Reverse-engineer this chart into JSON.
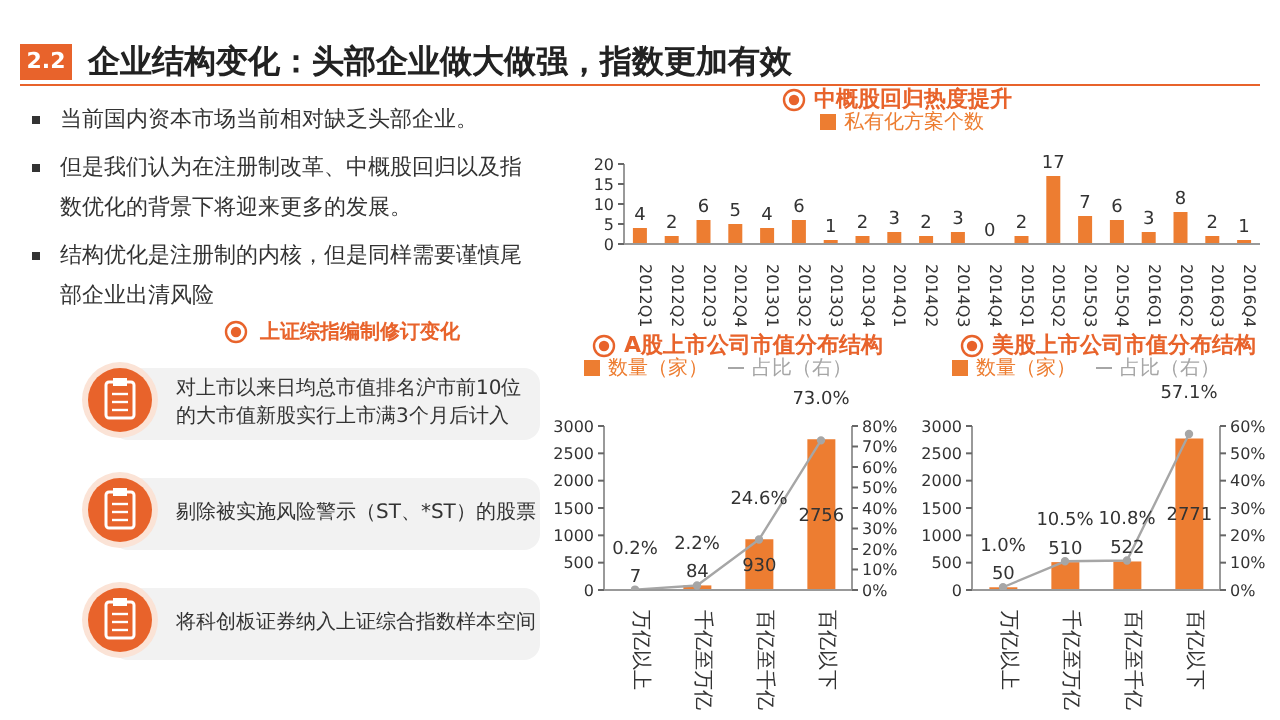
{
  "chart_data": [
    {
      "type": "other",
      "title": "企业结构变化：头部企业做大做强，指数更加有效",
      "annotations": [
        "2.2",
        "当前国内资本市场当前相对缺乏头部企业。",
        "但是我们认为在注册制改革、中概股回归以及指数优化的背景下将迎来更多的发展。",
        "结构优化是注册制的内核，但是同样需要谨慎尾部企业出清风险",
        "上证综指编制修订变化",
        "对上市以来日均总市值排名沪市前10位的大市值新股实行上市满3个月后计入",
        "剔除被实施风险警示（ST、*ST）的股票",
        "将科创板证券纳入上证综合指数样本空间"
      ]
    },
    {
      "type": "bar",
      "title": "中概股回归热度提升",
      "legend": "top",
      "data_labels": true,
      "categories": [
        "2012Q1",
        "2012Q2",
        "2012Q3",
        "2012Q4",
        "2013Q1",
        "2013Q2",
        "2013Q3",
        "2013Q4",
        "2014Q1",
        "2014Q2",
        "2014Q3",
        "2014Q4",
        "2015Q1",
        "2015Q2",
        "2015Q3",
        "2015Q4",
        "2016Q1",
        "2016Q2",
        "2016Q3",
        "2016Q4"
      ],
      "ylim": [
        0,
        20
      ],
      "yticks": [
        0,
        5,
        10,
        15,
        20
      ],
      "series": [
        {
          "name": "私有化方案个数",
          "color": "#ed7d31",
          "values": [
            4,
            2,
            6,
            5,
            4,
            6,
            1,
            2,
            3,
            2,
            3,
            0,
            2,
            17,
            7,
            6,
            3,
            8,
            2,
            1
          ]
        }
      ]
    },
    {
      "type": "bar",
      "title": "A股上市公司市值分布结构",
      "legend": "top",
      "categories": [
        "万亿以上",
        "千亿至万亿",
        "百亿至千亿",
        "百亿以下"
      ],
      "ylim": [
        0,
        3000
      ],
      "yticks": [
        0,
        500,
        1000,
        1500,
        2000,
        2500,
        3000
      ],
      "y2lim": [
        0,
        80
      ],
      "y2ticks": [
        {
          "value": 0,
          "label": "0%"
        },
        {
          "value": 10,
          "label": "10%"
        },
        {
          "value": 20,
          "label": "20%"
        },
        {
          "value": 30,
          "label": "30%"
        },
        {
          "value": 40,
          "label": "40%"
        },
        {
          "value": 50,
          "label": "50%"
        },
        {
          "value": 60,
          "label": "60%"
        },
        {
          "value": 70,
          "label": "70%"
        },
        {
          "value": 80,
          "label": "80%"
        }
      ],
      "series": [
        {
          "name": "数量（家）",
          "color": "#ed7d31",
          "values": [
            7,
            84,
            930,
            2756
          ],
          "value_labels": [
            "7",
            "84",
            "930",
            "2756"
          ]
        },
        {
          "name": "占比（右）",
          "type": "line",
          "axis": "y2",
          "marker": "circle",
          "color": "#a6a6a6",
          "values": [
            0.2,
            2.2,
            24.6,
            73.0
          ],
          "value_labels": [
            "0.2%",
            "2.2%",
            "24.6%",
            "73.0%"
          ]
        }
      ]
    },
    {
      "type": "bar",
      "title": "美股上市公司市值分布结构",
      "legend": "top",
      "categories": [
        "万亿以上",
        "千亿至万亿",
        "百亿至千亿",
        "百亿以下"
      ],
      "ylim": [
        0,
        3000
      ],
      "yticks": [
        0,
        500,
        1000,
        1500,
        2000,
        2500,
        3000
      ],
      "y2lim": [
        0,
        60
      ],
      "y2ticks": [
        {
          "value": 0,
          "label": "0%"
        },
        {
          "value": 10,
          "label": "10%"
        },
        {
          "value": 20,
          "label": "20%"
        },
        {
          "value": 30,
          "label": "30%"
        },
        {
          "value": 40,
          "label": "40%"
        },
        {
          "value": 50,
          "label": "50%"
        },
        {
          "value": 60,
          "label": "60%"
        }
      ],
      "series": [
        {
          "name": "数量（家）",
          "color": "#ed7d31",
          "values": [
            50,
            510,
            522,
            2771
          ],
          "value_labels": [
            "50",
            "510",
            "522",
            "2771"
          ]
        },
        {
          "name": "占比（右）",
          "type": "line",
          "axis": "y2",
          "marker": "circle",
          "color": "#a6a6a6",
          "values": [
            1.0,
            10.5,
            10.8,
            57.1
          ],
          "value_labels": [
            "1.0%",
            "10.5%",
            "10.8%",
            "57.1%"
          ]
        }
      ]
    }
  ]
}
